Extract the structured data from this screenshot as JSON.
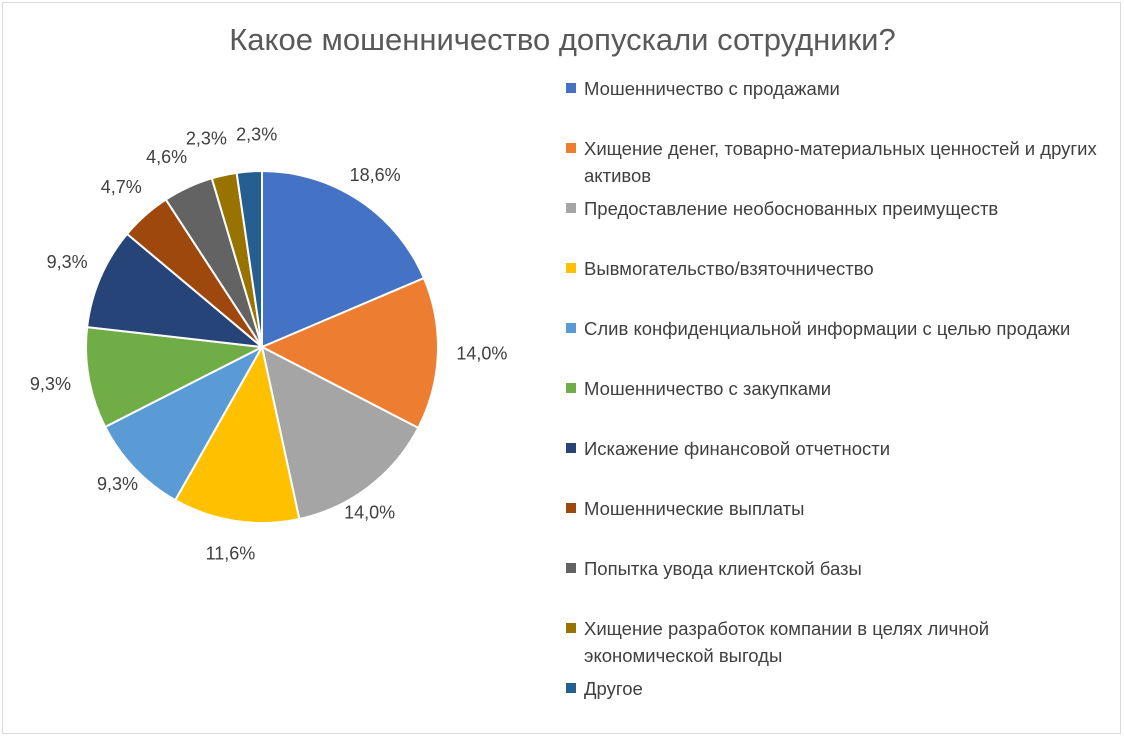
{
  "chart_data": {
    "type": "pie",
    "title": "Какое мошенничество допускали сотрудники?",
    "legend_position": "right",
    "categories": [
      "Мошенничество с продажами",
      "Хищение денег, товарно-материальных ценностей и других активов",
      "Предоставление необоснованных преимуществ",
      "Вывмогательство/взяточничество",
      "Слив конфиденциальной информации с целью продажи",
      "Мошенничество с закупками",
      "Искажение финансовой отчетности",
      "Мошеннические выплаты",
      "Попытка увода клиентской базы",
      "Хищение разработок компании в целях личной экономической выгоды",
      "Другое"
    ],
    "values": [
      18.6,
      14.0,
      14.0,
      11.6,
      9.3,
      9.3,
      9.3,
      4.7,
      4.6,
      2.3,
      2.3
    ],
    "labels": [
      "18,6%",
      "14,0%",
      "14,0%",
      "11,6%",
      "9,3%",
      "9,3%",
      "9,3%",
      "4,7%",
      "4,6%",
      "2,3%",
      "2,3%"
    ],
    "colors": [
      "#4472c4",
      "#ed7d31",
      "#a5a5a5",
      "#ffc000",
      "#5b9bd5",
      "#70ad47",
      "#264478",
      "#9e480e",
      "#636363",
      "#997300",
      "#255e91"
    ]
  }
}
